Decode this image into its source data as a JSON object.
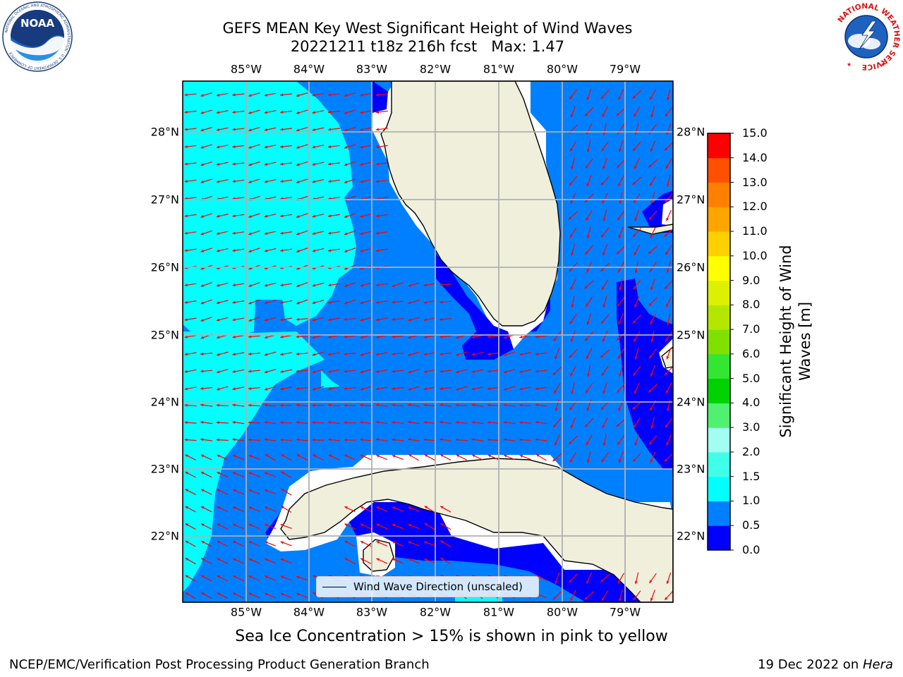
{
  "title_line1": "GEFS MEAN Key West Significant Height of Wind Waves",
  "title_line2": "20221211 t18z 216h fcst   Max: 1.47",
  "lon_ticks": [
    "85°W",
    "84°W",
    "83°W",
    "82°W",
    "81°W",
    "80°W",
    "79°W"
  ],
  "lat_ticks": [
    "28°N",
    "27°N",
    "26°N",
    "25°N",
    "24°N",
    "23°N",
    "22°N"
  ],
  "colorbar": {
    "title_line1": "Significant Height of Wind",
    "title_line2": "Waves [m]",
    "ticks": [
      "0.0",
      "0.5",
      "1.0",
      "1.5",
      "2.0",
      "3.0",
      "4.0",
      "5.0",
      "6.0",
      "7.0",
      "8.0",
      "9.0",
      "10.0",
      "11.0",
      "12.0",
      "13.0",
      "14.0",
      "15.0"
    ],
    "colors": [
      "#0000ff",
      "#0080ff",
      "#00ffff",
      "#40ffe8",
      "#a0fff0",
      "#50f070",
      "#00d200",
      "#32e632",
      "#80e000",
      "#b4e600",
      "#dcf000",
      "#ffff00",
      "#ffd000",
      "#ffa500",
      "#ff8000",
      "#ff5000",
      "#ff0000"
    ]
  },
  "map_colors": {
    "land": "#efefdc",
    "waves_0_0p5": "#0000ff",
    "waves_0p5_1": "#0080ff",
    "waves_1_1p5": "#00ffff",
    "arrows": "#ff0000",
    "grid": "#b0b0b0"
  },
  "legend_label": "Wind Wave Direction (unscaled)",
  "subtitle": "Sea Ice Concentration > 15% is shown in pink to yellow",
  "footer_left": "NCEP/EMC/Verification Post Processing Product Generation Branch",
  "footer_right_prefix": "19 Dec 2022 on ",
  "footer_right_host": "Hera",
  "logo_left": "NOAA",
  "logo_left_ring": "NATIONAL OCEANIC AND ATMOSPHERIC ADMINISTRATION · U.S. DEPARTMENT OF COMMERCE",
  "logo_right_ring": "NATIONAL WEATHER SERVICE"
}
